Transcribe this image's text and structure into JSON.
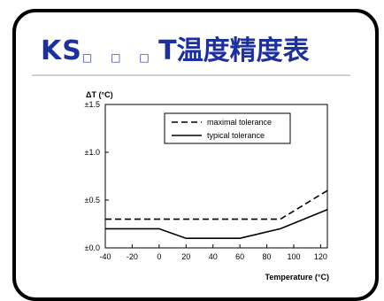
{
  "slide": {
    "title_lead": "KS",
    "title_glyphs": [
      "□",
      "□",
      "□"
    ],
    "title_tail": "T温度精度表"
  },
  "chart_data": {
    "type": "line",
    "title": "",
    "ylabel": "ΔT (°C)",
    "xlabel": "Temperature (°C)",
    "xlim": [
      -40,
      125
    ],
    "ylim": [
      0,
      1.5
    ],
    "x_ticks": [
      -40,
      -20,
      0,
      20,
      40,
      60,
      80,
      100,
      120
    ],
    "x_tick_labels": [
      "-40",
      "-20",
      "0",
      "20",
      "40",
      "60",
      "80",
      "100",
      "120"
    ],
    "y_ticks": [
      0,
      0.5,
      1.0,
      1.5
    ],
    "y_tick_labels": [
      "±0.0",
      "±0.5",
      "±1.0",
      "±1.5"
    ],
    "grid": false,
    "legend_position": "top-right",
    "series": [
      {
        "name": "maximal tolerance",
        "style": "dashed",
        "x": [
          -40,
          90,
          125
        ],
        "y": [
          0.3,
          0.3,
          0.6
        ]
      },
      {
        "name": "typical tolerance",
        "style": "solid",
        "x": [
          -40,
          0,
          20,
          60,
          90,
          125
        ],
        "y": [
          0.2,
          0.2,
          0.1,
          0.1,
          0.2,
          0.4
        ]
      }
    ]
  },
  "colors": {
    "title": "#1e2f9e",
    "frame": "#000000",
    "lines": "#000000"
  }
}
